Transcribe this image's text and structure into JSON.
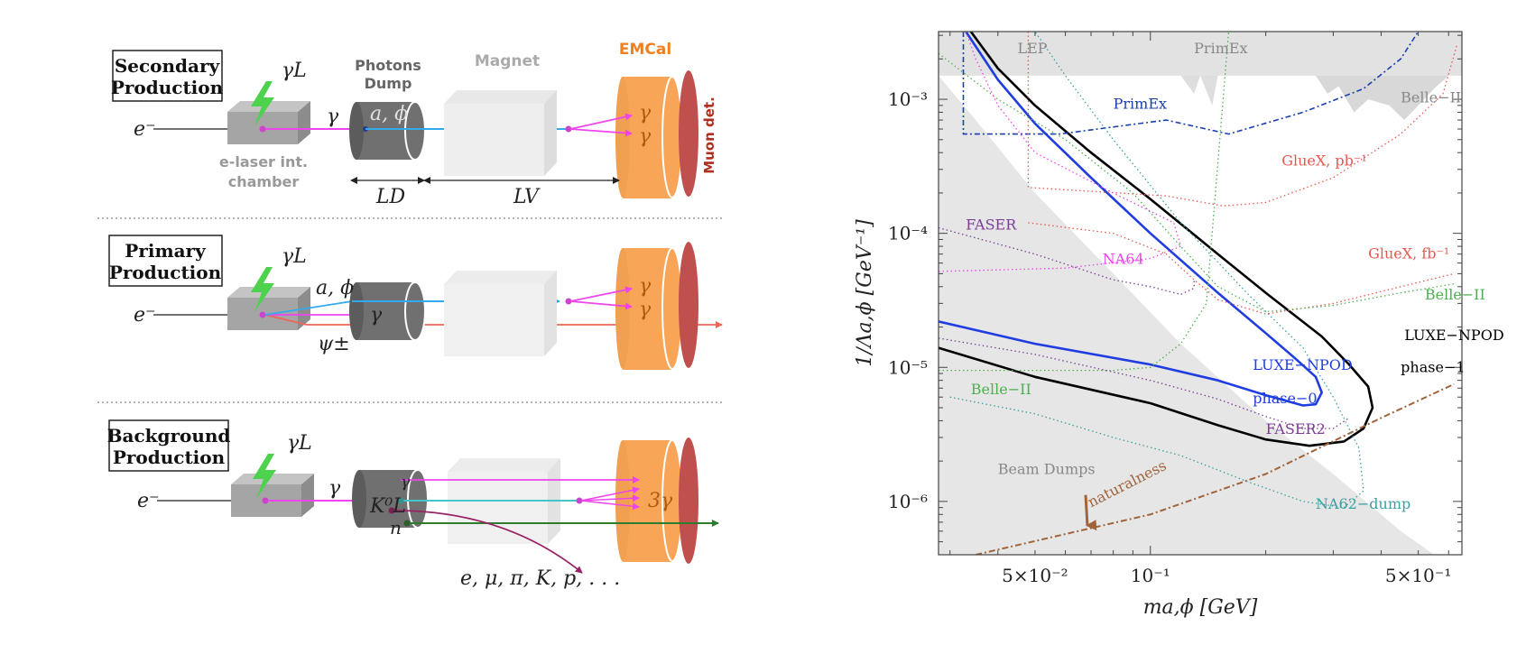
{
  "colors": {
    "beam": "#555555",
    "photon": "#ee44ee",
    "alp": "#33aaee",
    "psi": "#ee6655",
    "emcal": "#f9a557",
    "muon": "#c0504d",
    "dump": "#707070",
    "chamber": "#a5a5a5",
    "magnet": "#eeeeee",
    "laser": "#4cd24c",
    "neutron": "#2e7d2e",
    "klong": "#40c8c8",
    "other": "#992266"
  },
  "panels": [
    {
      "title_line1": "Secondary",
      "title_line2": "Production",
      "gamma_L": "γL",
      "electron": "e⁻",
      "photon": "γ",
      "dump_label1": "Photons",
      "dump_label2": "Dump",
      "dump_text": "a, ϕ",
      "magnet_label": "Magnet",
      "emcal_label": "EMCal",
      "muon_label": "Muon det.",
      "chamber_label1": "e-laser int.",
      "chamber_label2": "chamber",
      "ld_label": "LD",
      "lv_label": "LV",
      "gamma1": "γ",
      "gamma2": "γ"
    },
    {
      "title_line1": "Primary",
      "title_line2": "Production",
      "gamma_L": "γL",
      "electron": "e⁻",
      "alp_label": "a, ϕ",
      "photon": "γ",
      "psi_label": "ψ±",
      "gamma1": "γ",
      "gamma2": "γ"
    },
    {
      "title_line1": "Background",
      "title_line2": "Production",
      "gamma_L": "γL",
      "electron": "e⁻",
      "photon": "γ",
      "kl_label": "K⁰L",
      "gamma_small": "γ",
      "n_label": "n",
      "three_gamma": "3γ",
      "products": "e, μ, π, K, p, . . ."
    }
  ],
  "chart_data": {
    "type": "line",
    "xlabel": "ma,ϕ [GeV]",
    "ylabel": "1/Λa,ϕ [GeV⁻¹]",
    "xscale": "log",
    "yscale": "log",
    "xlim": [
      0.028,
      0.65
    ],
    "ylim": [
      4e-07,
      0.0032
    ],
    "x_ticks": [
      {
        "value": 0.05,
        "label": "5×10⁻²"
      },
      {
        "value": 0.1,
        "label": "10⁻¹"
      },
      {
        "value": 0.5,
        "label": "5×10⁻¹"
      }
    ],
    "y_ticks": [
      {
        "value": 0.001,
        "label": "10⁻³"
      },
      {
        "value": 0.0001,
        "label": "10⁻⁴"
      },
      {
        "value": 1e-05,
        "label": "10⁻⁵"
      },
      {
        "value": 1e-06,
        "label": "10⁻⁶"
      }
    ],
    "regions": [
      {
        "name": "Beam Dumps",
        "color": "#e6e6e6",
        "points": [
          [
            0.028,
            0.0015
          ],
          [
            0.035,
            0.0007
          ],
          [
            0.05,
            0.0002
          ],
          [
            0.08,
            5e-05
          ],
          [
            0.12,
            1.5e-05
          ],
          [
            0.2,
            4e-06
          ],
          [
            0.3,
            1.6e-06
          ],
          [
            0.45,
            6e-07
          ],
          [
            0.55,
            4e-07
          ],
          [
            0.028,
            4e-07
          ]
        ]
      },
      {
        "name": "LEP",
        "color": "#e2e2e2",
        "points": [
          [
            0.028,
            0.0032
          ],
          [
            0.65,
            0.0032
          ],
          [
            0.65,
            0.0015
          ],
          [
            0.028,
            0.0015
          ]
        ]
      },
      {
        "name": "PrimEx",
        "color": "#dedede",
        "points": [
          [
            0.12,
            0.0015
          ],
          [
            0.13,
            0.0011
          ],
          [
            0.135,
            0.0015
          ],
          [
            0.145,
            0.0009
          ],
          [
            0.15,
            0.0015
          ]
        ]
      },
      {
        "name": "Belle-II",
        "color": "#d8d8d8",
        "points": [
          [
            0.27,
            0.0015
          ],
          [
            0.29,
            0.0011
          ],
          [
            0.31,
            0.00125
          ],
          [
            0.34,
            0.0008
          ],
          [
            0.37,
            0.001
          ],
          [
            0.42,
            0.0009
          ],
          [
            0.46,
            0.0007
          ],
          [
            0.5,
            0.0009
          ],
          [
            0.55,
            0.0012
          ],
          [
            0.6,
            0.0015
          ]
        ]
      }
    ],
    "series": [
      {
        "name": "LUXE-NPOD phase-1",
        "color": "#000000",
        "width": 2.6,
        "dash": "",
        "points": [
          [
            0.028,
            1.4e-05
          ],
          [
            0.05,
            8.5e-06
          ],
          [
            0.1,
            5.4e-06
          ],
          [
            0.15,
            3.7e-06
          ],
          [
            0.2,
            2.9e-06
          ],
          [
            0.26,
            2.6e-06
          ],
          [
            0.32,
            2.8e-06
          ],
          [
            0.36,
            3.5e-06
          ],
          [
            0.38,
            5e-06
          ],
          [
            0.37,
            7.2e-06
          ],
          [
            0.33,
            1.05e-05
          ],
          [
            0.28,
            1.7e-05
          ],
          [
            0.2,
            3.6e-05
          ],
          [
            0.15,
            7e-05
          ],
          [
            0.1,
            0.00018
          ],
          [
            0.07,
            0.0004
          ],
          [
            0.05,
            0.0009
          ],
          [
            0.04,
            0.0017
          ],
          [
            0.034,
            0.0032
          ]
        ]
      },
      {
        "name": "LUXE-NPOD phase-0",
        "color": "#1f3de0",
        "width": 2.6,
        "dash": "",
        "points": [
          [
            0.028,
            2.2e-05
          ],
          [
            0.05,
            1.5e-05
          ],
          [
            0.1,
            1.05e-05
          ],
          [
            0.15,
            8e-06
          ],
          [
            0.2,
            6.2e-06
          ],
          [
            0.25,
            5.2e-06
          ],
          [
            0.27,
            5.3e-06
          ],
          [
            0.28,
            6.5e-06
          ],
          [
            0.27,
            8.5e-06
          ],
          [
            0.24,
            1.15e-05
          ],
          [
            0.2,
            1.8e-05
          ],
          [
            0.15,
            3.6e-05
          ],
          [
            0.1,
            0.0001
          ],
          [
            0.07,
            0.00026
          ],
          [
            0.05,
            0.00066
          ],
          [
            0.04,
            0.0014
          ],
          [
            0.033,
            0.0032
          ]
        ]
      },
      {
        "name": "PrimEx",
        "color": "#1a3fb0",
        "width": 1.6,
        "dash": "6 3 2 3",
        "points": [
          [
            0.0325,
            0.0032
          ],
          [
            0.0325,
            0.00055
          ],
          [
            0.058,
            0.00055
          ],
          [
            0.09,
            0.00065
          ],
          [
            0.11,
            0.0007
          ],
          [
            0.16,
            0.00055
          ],
          [
            0.25,
            0.0008
          ],
          [
            0.36,
            0.0012
          ],
          [
            0.45,
            0.002
          ],
          [
            0.5,
            0.0032
          ]
        ]
      },
      {
        "name": "naturalness",
        "color": "#a0643c",
        "width": 2,
        "dash": "7 3 2 3",
        "points": [
          [
            0.035,
            4e-07
          ],
          [
            0.1,
            8e-07
          ],
          [
            0.2,
            1.6e-06
          ],
          [
            0.4,
            4.2e-06
          ],
          [
            0.62,
            7.5e-06
          ]
        ]
      },
      {
        "name": "GlueX, pb⁻¹",
        "color": "#e8584f",
        "width": 1.3,
        "dash": "1.5 3",
        "points": [
          [
            0.048,
            0.0032
          ],
          [
            0.048,
            0.00022
          ],
          [
            0.11,
            0.00019
          ],
          [
            0.155,
            0.00016
          ],
          [
            0.2,
            0.00017
          ],
          [
            0.3,
            0.00026
          ],
          [
            0.45,
            0.00055
          ],
          [
            0.58,
            0.0011
          ],
          [
            0.63,
            0.0025
          ]
        ]
      },
      {
        "name": "GlueX, fb⁻¹",
        "color": "#e8584f",
        "width": 1.3,
        "dash": "1.5 3",
        "points": [
          [
            0.048,
            0.00012
          ],
          [
            0.08,
            0.0001
          ],
          [
            0.11,
            7e-05
          ],
          [
            0.13,
            4.5e-05
          ],
          [
            0.15,
            3.2e-05
          ],
          [
            0.2,
            2.5e-05
          ],
          [
            0.3,
            3e-05
          ],
          [
            0.45,
            4e-05
          ],
          [
            0.62,
            5e-05
          ]
        ]
      },
      {
        "name": "Belle-II",
        "color": "#4caf50",
        "width": 1.3,
        "dash": "1.5 3",
        "points": [
          [
            0.028,
            0.0022
          ],
          [
            0.04,
            0.001
          ],
          [
            0.06,
            0.0005
          ],
          [
            0.09,
            0.0002
          ],
          [
            0.12,
            8e-05
          ],
          [
            0.15,
            4e-05
          ],
          [
            0.2,
            2.6e-05
          ],
          [
            0.3,
            2.9e-05
          ],
          [
            0.45,
            3.6e-05
          ],
          [
            0.62,
            4.2e-05
          ]
        ]
      },
      {
        "name": "Belle-II",
        "color": "#4caf50",
        "width": 1.3,
        "dash": "1.5 3",
        "points": [
          [
            0.028,
            9.5e-06
          ],
          [
            0.05,
            9.5e-06
          ],
          [
            0.08,
            9.5e-06
          ],
          [
            0.1,
            1e-05
          ],
          [
            0.12,
            1.5e-05
          ],
          [
            0.14,
            3e-05
          ],
          [
            0.16,
            0.0032
          ]
        ]
      },
      {
        "name": "FASER",
        "color": "#7d3c98",
        "width": 1.3,
        "dash": "1.5 3",
        "points": [
          [
            0.028,
            0.00011
          ],
          [
            0.05,
            7e-05
          ],
          [
            0.08,
            4.5e-05
          ],
          [
            0.1,
            4e-05
          ],
          [
            0.12,
            3.5e-05
          ],
          [
            0.13,
            3.9e-05
          ],
          [
            0.13,
            4.6e-05
          ]
        ]
      },
      {
        "name": "FASER2",
        "color": "#7d3c98",
        "width": 1.3,
        "dash": "1.5 3",
        "points": [
          [
            0.028,
            1.65e-05
          ],
          [
            0.05,
            1.25e-05
          ],
          [
            0.1,
            8e-06
          ],
          [
            0.15,
            5.8e-06
          ],
          [
            0.2,
            4.3e-06
          ],
          [
            0.25,
            3.5e-06
          ],
          [
            0.3,
            3.5e-06
          ],
          [
            0.33,
            4.2e-06
          ]
        ]
      },
      {
        "name": "NA64",
        "color": "#ee44ee",
        "width": 1.3,
        "dash": "1.5 3",
        "points": [
          [
            0.028,
            5.2e-05
          ],
          [
            0.06,
            5.5e-05
          ],
          [
            0.1,
            6.5e-05
          ],
          [
            0.12,
            8e-05
          ],
          [
            0.115,
            0.00012
          ],
          [
            0.08,
            0.0002
          ],
          [
            0.05,
            0.0004
          ],
          [
            0.04,
            0.0009
          ],
          [
            0.035,
            0.002
          ],
          [
            0.033,
            0.0032
          ]
        ]
      },
      {
        "name": "NA62-dump",
        "color": "#3aa0a0",
        "width": 1.3,
        "dash": "1.5 3",
        "points": [
          [
            0.03,
            6e-06
          ],
          [
            0.05,
            4.5e-06
          ],
          [
            0.08,
            3e-06
          ],
          [
            0.12,
            2.2e-06
          ],
          [
            0.18,
            1.4e-06
          ],
          [
            0.25,
            1e-06
          ],
          [
            0.32,
            9e-07
          ],
          [
            0.36,
            1.2e-06
          ],
          [
            0.35,
            2.5e-06
          ],
          [
            0.3,
            6e-06
          ],
          [
            0.25,
            1.4e-05
          ],
          [
            0.18,
            3.5e-05
          ],
          [
            0.12,
            0.00012
          ],
          [
            0.08,
            0.0005
          ],
          [
            0.06,
            0.0015
          ],
          [
            0.05,
            0.0032
          ]
        ]
      }
    ],
    "labels": [
      {
        "text": "LEP",
        "x": 0.045,
        "y": 0.0022,
        "color": "#888888"
      },
      {
        "text": "PrimEx",
        "x": 0.13,
        "y": 0.0022,
        "color": "#888888"
      },
      {
        "text": "PrimEx",
        "x": 0.08,
        "y": 0.00085,
        "color": "#1a3fb0"
      },
      {
        "text": "Belle−II",
        "x": 0.45,
        "y": 0.00095,
        "color": "#888888"
      },
      {
        "text": "GlueX, pb⁻¹",
        "x": 0.22,
        "y": 0.00032,
        "color": "#e8584f"
      },
      {
        "text": "GlueX, fb⁻¹",
        "x": 0.37,
        "y": 6.5e-05,
        "color": "#e8584f"
      },
      {
        "text": "Belle−II",
        "x": 0.52,
        "y": 3.2e-05,
        "color": "#4caf50"
      },
      {
        "text": "FASER",
        "x": 0.033,
        "y": 0.000107,
        "color": "#7d3c98"
      },
      {
        "text": "NA64",
        "x": 0.075,
        "y": 5.9e-05,
        "color": "#ee44ee"
      },
      {
        "text": "LUXE−NPOD",
        "x": 0.46,
        "y": 1.6e-05,
        "color": "#000000"
      },
      {
        "text": "phase−1",
        "x": 0.45,
        "y": 9.2e-06,
        "color": "#000000"
      },
      {
        "text": "LUXE−NPOD",
        "x": 0.185,
        "y": 9.6e-06,
        "color": "#1f3de0"
      },
      {
        "text": "phase−0",
        "x": 0.185,
        "y": 5.4e-06,
        "color": "#1f3de0"
      },
      {
        "text": "Belle−II",
        "x": 0.034,
        "y": 6.3e-06,
        "color": "#4caf50"
      },
      {
        "text": "FASER2",
        "x": 0.2,
        "y": 3.2e-06,
        "color": "#7d3c98"
      },
      {
        "text": "Beam Dumps",
        "x": 0.04,
        "y": 1.6e-06,
        "color": "#888888"
      },
      {
        "text": "NA62−dump",
        "x": 0.27,
        "y": 8.8e-07,
        "color": "#3aa0a0"
      }
    ],
    "annotations": [
      {
        "text": "naturalness",
        "x": 0.07,
        "y": 9e-07,
        "color": "#a0643c",
        "rotate": -27
      }
    ]
  }
}
